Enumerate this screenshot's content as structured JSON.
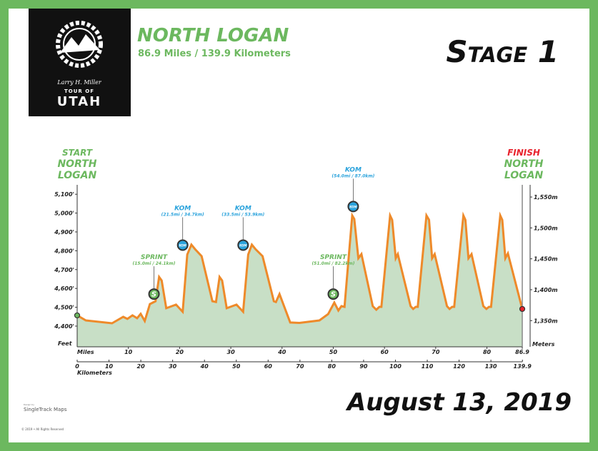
{
  "header": {
    "title": "NORTH LOGAN",
    "subtitle": "86.9 Miles / 139.9 Kilometers",
    "stage": "Stage 1",
    "date": "August 13, 2019"
  },
  "logo": {
    "signature": "Larry H. Miller",
    "line1": "TOUR OF",
    "line2": "UTAH"
  },
  "footer": {
    "credit_small": "Design by",
    "credit": "SingleTrack Maps",
    "copyright": "© 2019 • All Rights Reserved"
  },
  "colors": {
    "frame": "#6cb85f",
    "profile_line": "#ee8a2a",
    "profile_fill": "#c8dfc6",
    "green": "#6cb85f",
    "kom": "#2ba3dc",
    "finish": "#e8242e"
  },
  "labels": {
    "start": [
      "START",
      "NORTH",
      "LOGAN"
    ],
    "finish": [
      "FINISH",
      "NORTH",
      "LOGAN"
    ]
  },
  "chart_data": {
    "type": "area",
    "xlabel_top": "Miles",
    "xlabel_bottom": "Kilometers",
    "ylabel_left": "Feet",
    "ylabel_right": "Meters",
    "xlim": [
      0,
      86.9
    ],
    "ylim": [
      4290,
      5150
    ],
    "miles_ticks": [
      "0",
      "10",
      "20",
      "30",
      "40",
      "50",
      "60",
      "70",
      "80",
      "86.9"
    ],
    "km_ticks": [
      "0",
      "10",
      "20",
      "30",
      "40",
      "50",
      "60",
      "70",
      "80",
      "90",
      "100",
      "110",
      "120",
      "130",
      "139.9"
    ],
    "feet_ticks": [
      {
        "v": 4400,
        "label": "4,400'"
      },
      {
        "v": 4500,
        "label": "4,500'"
      },
      {
        "v": 4600,
        "label": "4,600'"
      },
      {
        "v": 4700,
        "label": "4,700'"
      },
      {
        "v": 4800,
        "label": "4,800'"
      },
      {
        "v": 4900,
        "label": "4,900'"
      },
      {
        "v": 5000,
        "label": "5,000'"
      },
      {
        "v": 5100,
        "label": "5,100'"
      }
    ],
    "meter_ticks": [
      {
        "v": 1350,
        "label": "1,350m"
      },
      {
        "v": 1400,
        "label": "1,400m"
      },
      {
        "v": 1450,
        "label": "1,450m"
      },
      {
        "v": 1500,
        "label": "1,500m"
      },
      {
        "v": 1550,
        "label": "1,550m"
      }
    ],
    "profile": [
      [
        0,
        4457
      ],
      [
        1.7,
        4430
      ],
      [
        6.8,
        4415
      ],
      [
        9.0,
        4449
      ],
      [
        9.8,
        4438
      ],
      [
        10.8,
        4457
      ],
      [
        11.7,
        4442
      ],
      [
        12.4,
        4465
      ],
      [
        13.2,
        4427
      ],
      [
        14.2,
        4517
      ],
      [
        15.3,
        4532
      ],
      [
        16.0,
        4661
      ],
      [
        16.5,
        4642
      ],
      [
        17.4,
        4495
      ],
      [
        19.3,
        4514
      ],
      [
        20.6,
        4476
      ],
      [
        21.5,
        4780
      ],
      [
        22.3,
        4832
      ],
      [
        23.0,
        4809
      ],
      [
        24.3,
        4771
      ],
      [
        26.4,
        4532
      ],
      [
        27.1,
        4528
      ],
      [
        27.8,
        4661
      ],
      [
        28.3,
        4642
      ],
      [
        29.2,
        4495
      ],
      [
        31.1,
        4514
      ],
      [
        32.4,
        4476
      ],
      [
        33.4,
        4780
      ],
      [
        34.1,
        4832
      ],
      [
        34.8,
        4809
      ],
      [
        36.2,
        4771
      ],
      [
        38.4,
        4532
      ],
      [
        38.8,
        4528
      ],
      [
        39.5,
        4570
      ],
      [
        41.6,
        4419
      ],
      [
        43.4,
        4417
      ],
      [
        47.3,
        4430
      ],
      [
        49.0,
        4464
      ],
      [
        50.2,
        4525
      ],
      [
        51.0,
        4483
      ],
      [
        51.6,
        4506
      ],
      [
        52.2,
        4502
      ],
      [
        53.7,
        4987
      ],
      [
        54.1,
        4968
      ],
      [
        54.9,
        4760
      ],
      [
        55.5,
        4782
      ],
      [
        57.7,
        4506
      ],
      [
        58.4,
        4487
      ],
      [
        59.0,
        4502
      ],
      [
        59.4,
        4502
      ],
      [
        61.1,
        4987
      ],
      [
        61.5,
        4964
      ],
      [
        62.2,
        4760
      ],
      [
        62.6,
        4782
      ],
      [
        65.1,
        4506
      ],
      [
        65.6,
        4491
      ],
      [
        66.1,
        4502
      ],
      [
        66.5,
        4502
      ],
      [
        68.2,
        4987
      ],
      [
        68.7,
        4964
      ],
      [
        69.3,
        4760
      ],
      [
        69.8,
        4782
      ],
      [
        72.2,
        4506
      ],
      [
        72.7,
        4491
      ],
      [
        73.2,
        4502
      ],
      [
        73.6,
        4502
      ],
      [
        75.4,
        4987
      ],
      [
        75.8,
        4964
      ],
      [
        76.4,
        4760
      ],
      [
        77.0,
        4782
      ],
      [
        79.3,
        4506
      ],
      [
        79.9,
        4491
      ],
      [
        80.4,
        4502
      ],
      [
        80.8,
        4502
      ],
      [
        82.6,
        4987
      ],
      [
        83.0,
        4964
      ],
      [
        83.6,
        4760
      ],
      [
        84.1,
        4786
      ],
      [
        86.9,
        4491
      ]
    ],
    "annotations": [
      {
        "type": "sprint",
        "title": "SPRINT",
        "detail": "(15.0mi / 24.1km)",
        "mile": 15.0,
        "feet": 4570,
        "icon": "S"
      },
      {
        "type": "kom",
        "title": "KOM",
        "detail": "(21.5mi / 34.7km)",
        "mile": 20.6,
        "feet": 4830,
        "icon": "KOM"
      },
      {
        "type": "kom",
        "title": "KOM",
        "detail": "(33.5mi / 53.9km)",
        "mile": 32.4,
        "feet": 4830,
        "icon": "KOM"
      },
      {
        "type": "sprint",
        "title": "SPRINT",
        "detail": "(51.0mi / 82.2km)",
        "mile": 50.0,
        "feet": 4570,
        "icon": "S"
      },
      {
        "type": "kom",
        "title": "KOM",
        "detail": "(54.0mi / 87.0km)",
        "mile": 53.9,
        "feet": 5035,
        "icon": "KOM"
      }
    ]
  }
}
